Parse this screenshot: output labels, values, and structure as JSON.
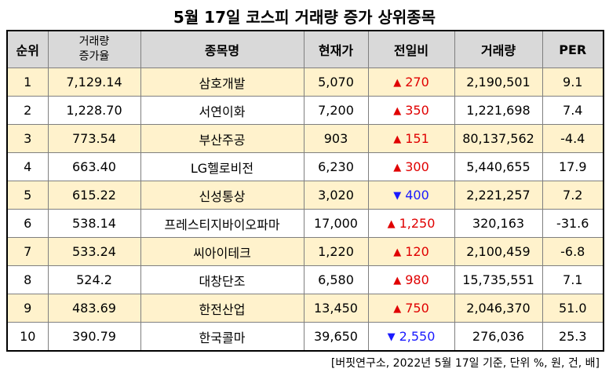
{
  "title": "5월 17일 코스피 거래량 증가 상위종목",
  "headers": {
    "rank": "순위",
    "volume_increase_line1": "거래량",
    "volume_increase_line2": "증가율",
    "name": "종목명",
    "price": "현재가",
    "change": "전일비",
    "volume": "거래량",
    "per": "PER"
  },
  "rows": [
    {
      "rank": "1",
      "increase": "7,129.14",
      "name": "삼호개발",
      "price": "5,070",
      "dir": "up",
      "change": "270",
      "volume": "2,190,501",
      "per": "9.1"
    },
    {
      "rank": "2",
      "increase": "1,228.70",
      "name": "서연이화",
      "price": "7,200",
      "dir": "up",
      "change": "350",
      "volume": "1,221,698",
      "per": "7.4"
    },
    {
      "rank": "3",
      "increase": "773.54",
      "name": "부산주공",
      "price": "903",
      "dir": "up",
      "change": "151",
      "volume": "80,137,562",
      "per": "-4.4"
    },
    {
      "rank": "4",
      "increase": "663.40",
      "name": "LG헬로비전",
      "price": "6,230",
      "dir": "up",
      "change": "300",
      "volume": "5,440,655",
      "per": "17.9"
    },
    {
      "rank": "5",
      "increase": "615.22",
      "name": "신성통상",
      "price": "3,020",
      "dir": "down",
      "change": "400",
      "volume": "2,221,257",
      "per": "7.2"
    },
    {
      "rank": "6",
      "increase": "538.14",
      "name": "프레스티지바이오파마",
      "price": "17,000",
      "dir": "up",
      "change": "1,250",
      "volume": "320,163",
      "per": "-31.6"
    },
    {
      "rank": "7",
      "increase": "533.24",
      "name": "씨아이테크",
      "price": "1,220",
      "dir": "up",
      "change": "120",
      "volume": "2,100,459",
      "per": "-6.8"
    },
    {
      "rank": "8",
      "increase": "524.2",
      "name": "대창단조",
      "price": "6,580",
      "dir": "up",
      "change": "980",
      "volume": "15,735,551",
      "per": "7.1"
    },
    {
      "rank": "9",
      "increase": "483.69",
      "name": "한전산업",
      "price": "13,450",
      "dir": "up",
      "change": "750",
      "volume": "2,046,370",
      "per": "51.0"
    },
    {
      "rank": "10",
      "increase": "390.79",
      "name": "한국콜마",
      "price": "39,650",
      "dir": "down",
      "change": "2,550",
      "volume": "276,036",
      "per": "25.3"
    }
  ],
  "arrow_up": "▲",
  "arrow_down": "▼",
  "colors": {
    "up": "#e00000",
    "down": "#1a1aff",
    "stripe": "#fff2cc",
    "header": "#d9d9d9"
  },
  "footer": "[버핏연구소, 2022년 5월 17일 기준, 단위 %, 원, 건, 배]"
}
